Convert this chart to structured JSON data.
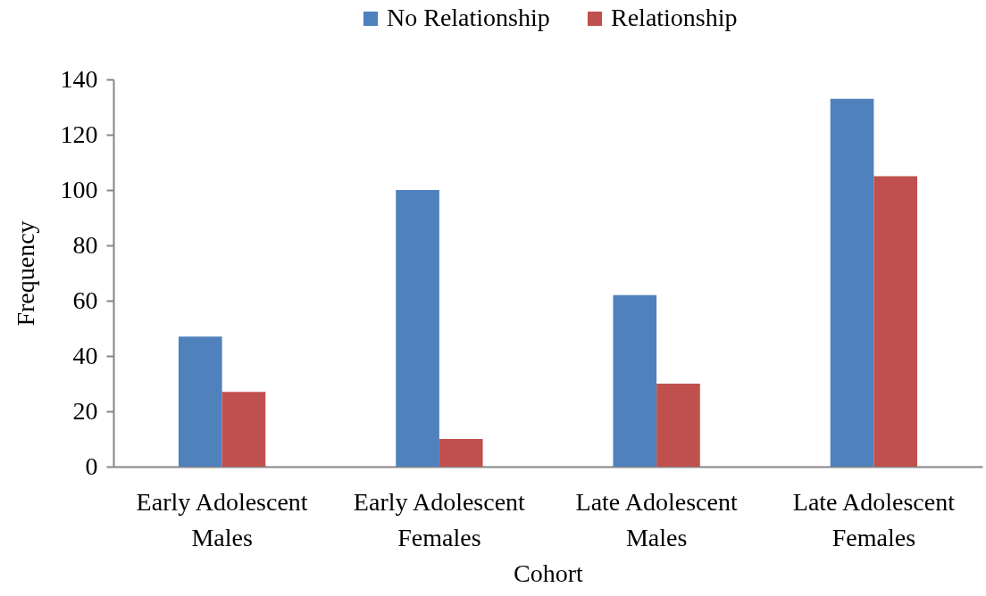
{
  "chart_data": {
    "type": "bar",
    "categories": [
      "Early Adolescent Males",
      "Early Adolescent Females",
      "Late Adolescent Males",
      "Late Adolescent Females"
    ],
    "series": [
      {
        "name": "No Relationship",
        "color": "#4f81bd",
        "values": [
          47,
          100,
          62,
          133
        ]
      },
      {
        "name": "Relationship",
        "color": "#c0504d",
        "values": [
          27,
          10,
          30,
          105
        ]
      }
    ],
    "xlabel": "Cohort",
    "ylabel": "Frequency",
    "ylim": [
      0,
      140
    ],
    "yticks": [
      0,
      20,
      40,
      60,
      80,
      100,
      120,
      140
    ],
    "legend": "top"
  }
}
